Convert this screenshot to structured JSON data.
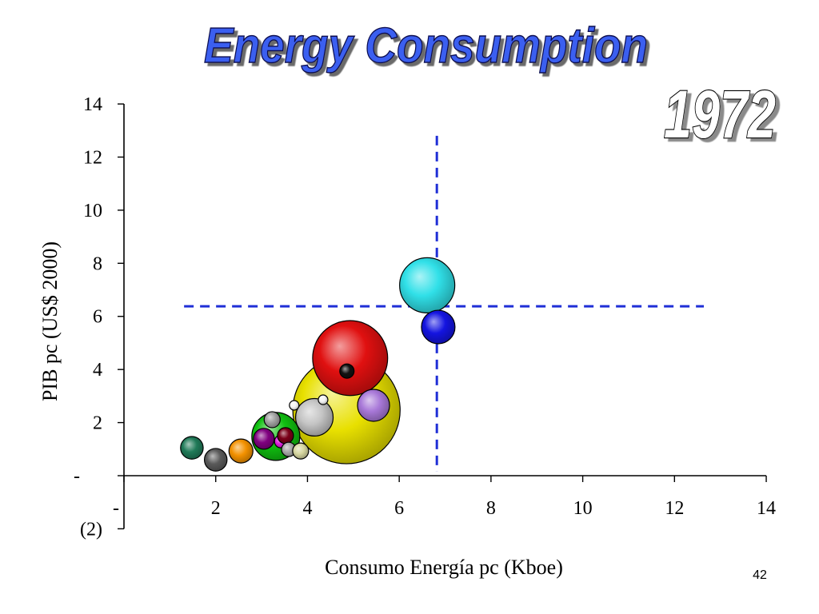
{
  "page_number": "42",
  "colors": {
    "background": "#ffffff",
    "title_fill": "#3a5ef0",
    "title_outline": "#0a1050",
    "annotation_fill": "#ffffff",
    "shadow": "#6b6b6b",
    "axis": "#000000",
    "reference_line": "#1f2fd6",
    "bubble_outline": "#000000"
  },
  "chart_data": {
    "type": "scatter",
    "title": "Energy Consumption",
    "annotation": "1972",
    "xlabel": "Consumo Energía pc (Kboe)",
    "ylabel": "PIB pc (US$ 2000)",
    "xlim": [
      0,
      14
    ],
    "ylim": [
      -2,
      14
    ],
    "grid": false,
    "x_ticks": [
      {
        "value": 0,
        "label": "-"
      },
      {
        "value": 2,
        "label": "2"
      },
      {
        "value": 4,
        "label": "4"
      },
      {
        "value": 6,
        "label": "6"
      },
      {
        "value": 8,
        "label": "8"
      },
      {
        "value": 10,
        "label": "10"
      },
      {
        "value": 12,
        "label": "12"
      },
      {
        "value": 14,
        "label": "14"
      }
    ],
    "y_ticks": [
      {
        "value": 14,
        "label": "14"
      },
      {
        "value": 12,
        "label": "12"
      },
      {
        "value": 10,
        "label": "10"
      },
      {
        "value": 8,
        "label": "8"
      },
      {
        "value": 6,
        "label": "6"
      },
      {
        "value": 4,
        "label": "4"
      },
      {
        "value": 2,
        "label": "2"
      },
      {
        "value": 0,
        "label": "-"
      },
      {
        "value": -2,
        "label": "(2)"
      }
    ],
    "points": [
      {
        "x": 4.85,
        "y": 2.47,
        "size": 45,
        "color": "#e8e000"
      },
      {
        "x": 4.93,
        "y": 4.43,
        "size": 22,
        "color": "#e01010"
      },
      {
        "x": 4.86,
        "y": 3.94,
        "size": 0.8,
        "color": "#111111"
      },
      {
        "x": 6.61,
        "y": 7.17,
        "size": 11.9,
        "color": "#30e0e8"
      },
      {
        "x": 6.85,
        "y": 5.6,
        "size": 4.4,
        "color": "#1414e0"
      },
      {
        "x": 5.44,
        "y": 2.65,
        "size": 4.0,
        "color": "#a878d8"
      },
      {
        "x": 4.15,
        "y": 2.2,
        "size": 5.5,
        "color": "#c4c4c4"
      },
      {
        "x": 3.71,
        "y": 2.65,
        "size": 0.36,
        "color": "#f4f4f4"
      },
      {
        "x": 4.34,
        "y": 2.86,
        "size": 0.36,
        "color": "#f4f4f4"
      },
      {
        "x": 3.31,
        "y": 1.48,
        "size": 9.0,
        "color": "#10c010"
      },
      {
        "x": 3.23,
        "y": 2.11,
        "size": 1.0,
        "color": "#a0a0a0"
      },
      {
        "x": 3.05,
        "y": 1.39,
        "size": 1.7,
        "color": "#800080"
      },
      {
        "x": 3.42,
        "y": 1.29,
        "size": 0.64,
        "color": "#e020e0"
      },
      {
        "x": 3.52,
        "y": 1.51,
        "size": 1.0,
        "color": "#7a0018"
      },
      {
        "x": 3.59,
        "y": 0.99,
        "size": 0.8,
        "color": "#a8a8a8"
      },
      {
        "x": 3.85,
        "y": 0.93,
        "size": 1.0,
        "color": "#d6d6a0"
      },
      {
        "x": 1.48,
        "y": 1.05,
        "size": 2.0,
        "color": "#207a58"
      },
      {
        "x": 2.0,
        "y": 0.6,
        "size": 2.0,
        "color": "#5a5a5a"
      },
      {
        "x": 2.55,
        "y": 0.93,
        "size": 2.25,
        "color": "#f39100"
      }
    ],
    "vertical_reference_line": {
      "x": 6.82,
      "y_from": 0.15,
      "y_to": 12.8
    },
    "horizontal_reference_line": {
      "y": 6.38,
      "x_from": 1.31,
      "x_to": 12.64
    }
  }
}
